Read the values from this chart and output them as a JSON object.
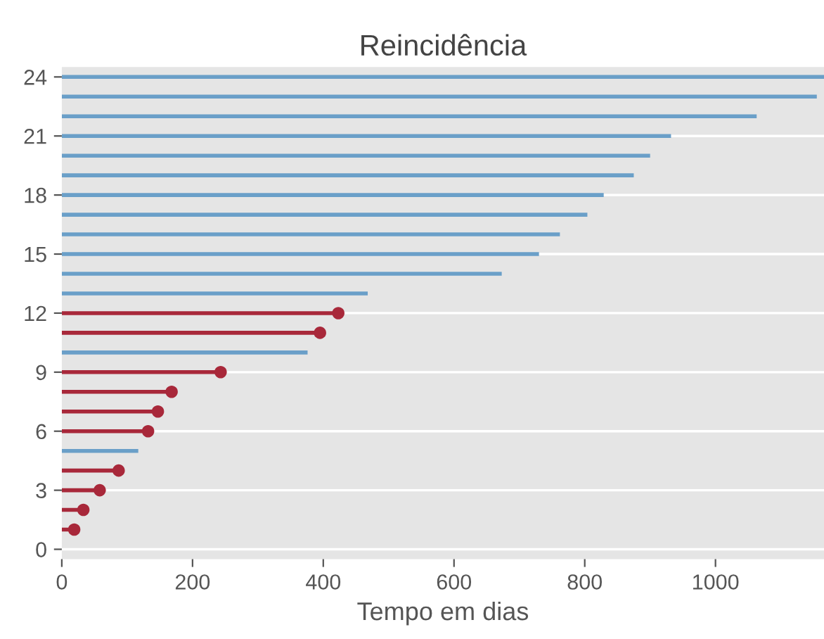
{
  "chart_data": {
    "type": "lollipop",
    "orientation": "horizontal",
    "title": "Reincidência",
    "xlabel": "Tempo em dias",
    "categories": [
      "24",
      null,
      null,
      "21",
      null,
      null,
      "18",
      null,
      null,
      "15",
      null,
      null,
      "12",
      null,
      null,
      "9",
      null,
      null,
      "6",
      null,
      null,
      "3",
      null,
      null,
      "0"
    ],
    "series": [
      {
        "color": "#a8283a",
        "marker": "circle",
        "values": [
          null,
          null,
          null,
          null,
          null,
          null,
          null,
          null,
          null,
          null,
          null,
          null,
          423,
          395,
          null,
          243,
          168,
          147,
          132,
          null,
          87,
          58,
          33,
          19,
          null
        ]
      },
      {
        "type": "bar",
        "color": "#6a9fc8",
        "values": [
          1166,
          1155,
          1063,
          932,
          900,
          875,
          829,
          804,
          762,
          730,
          673,
          468,
          null,
          null,
          376,
          null,
          null,
          null,
          null,
          117,
          null,
          null,
          null,
          null,
          null
        ]
      }
    ],
    "xlim": [
      0,
      1166
    ],
    "xticks": [
      0,
      200,
      400,
      600,
      800,
      1000
    ],
    "grid": "y"
  }
}
